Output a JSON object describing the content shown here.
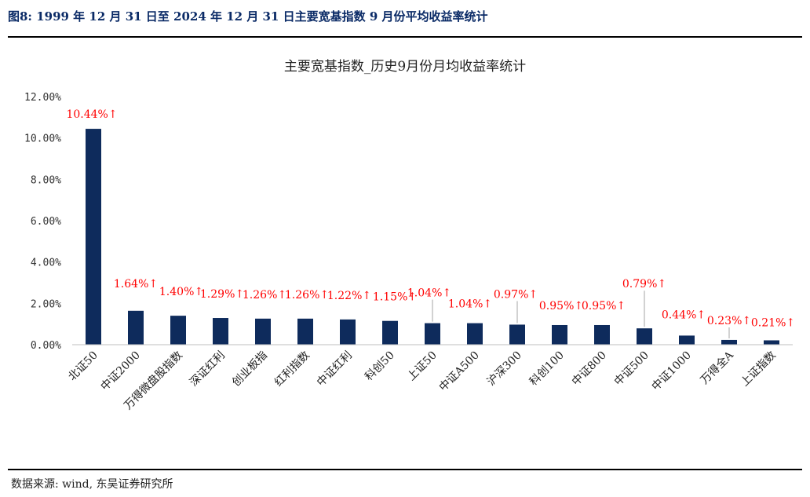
{
  "figure": {
    "title": "图8:  1999 年 12 月 31 日至 2024 年 12 月 31 日主要宽基指数 9 月份平均收益率统计",
    "source": "数据来源:  wind,  东吴证券研究所"
  },
  "chart_data": {
    "type": "bar",
    "title": "主要宽基指数_历史9月份月均收益率统计",
    "categories": [
      "北证50",
      "中证2000",
      "万得微盘股指数",
      "深证红利",
      "创业板指",
      "红利指数",
      "中证红利",
      "科创50",
      "上证50",
      "中证A500",
      "沪深300",
      "科创100",
      "中证800",
      "中证500",
      "中证1000",
      "万得全A",
      "上证指数"
    ],
    "values": [
      10.44,
      1.64,
      1.4,
      1.29,
      1.26,
      1.26,
      1.22,
      1.15,
      1.04,
      1.04,
      0.97,
      0.95,
      0.95,
      0.79,
      0.44,
      0.23,
      0.21
    ],
    "data_labels": [
      "10.44%↑",
      "1.64%↑",
      "1.40%↑",
      "1.29%↑",
      "1.26%↑",
      "1.26%↑",
      "1.22%↑",
      "1.15%↑",
      "1.04%↑",
      "1.04%↑",
      "0.97%↑",
      "0.95%↑",
      "0.95%↑",
      "0.79%↑",
      "0.44%↑",
      "0.23%↑",
      "0.21%↑"
    ],
    "yticks": [
      "0.00%",
      "2.00%",
      "4.00%",
      "6.00%",
      "8.00%",
      "10.00%",
      "12.00%"
    ],
    "ylim": [
      0,
      12
    ],
    "xlabel": "",
    "ylabel": "",
    "grid": false,
    "legend": "none",
    "colors": {
      "bar": "#0e2b5c",
      "label": "#ff0000",
      "axis": "#bfbfbf",
      "text": "#333333"
    }
  }
}
